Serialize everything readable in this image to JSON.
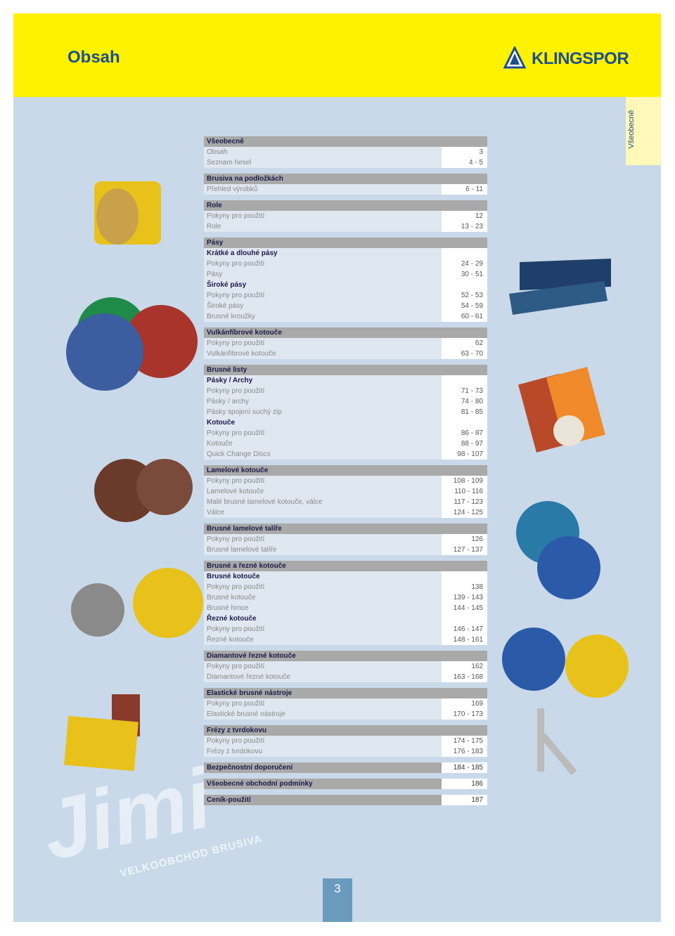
{
  "header": {
    "title": "Obsah",
    "brand": "KLINGSPOR"
  },
  "side_tab": "Všeobecně",
  "sections": [
    {
      "title": "Všeobecně",
      "items": [
        {
          "label": "Obsah",
          "pages": "3"
        },
        {
          "label": "Seznam hesel",
          "pages": "4 - 5"
        }
      ]
    },
    {
      "title": "Brusiva na podložkách",
      "items": [
        {
          "label": "Přehled výrobků",
          "pages": "6 - 11"
        }
      ]
    },
    {
      "title": "Role",
      "items": [
        {
          "label": "Pokyny pro použití",
          "pages": "12"
        },
        {
          "label": "Role",
          "pages": "13 - 23"
        }
      ]
    },
    {
      "title": "Pásy",
      "items": [
        {
          "heading": "Krátké a dlouhé pásy"
        },
        {
          "label": "Pokyny pro použití",
          "pages": "24 - 29"
        },
        {
          "label": "Pásy",
          "pages": "30 - 51"
        },
        {
          "heading": "Široké pásy"
        },
        {
          "label": "Pokyny pro použití",
          "pages": "52 - 53"
        },
        {
          "label": "Široké pásy",
          "pages": "54 - 59"
        },
        {
          "label": "Brusné kroužky",
          "pages": "60 - 61"
        }
      ]
    },
    {
      "title": "Vulkánfíbrové kotouče",
      "items": [
        {
          "label": "Pokyny pro použití",
          "pages": "62"
        },
        {
          "label": "Vulkánfíbrové kotouče",
          "pages": "63 - 70"
        }
      ]
    },
    {
      "title": "Brusné listy",
      "items": [
        {
          "heading": "Pásky / Archy"
        },
        {
          "label": "Pokyny pro použití",
          "pages": "71 - 73"
        },
        {
          "label": "Pásky / archy",
          "pages": "74 - 80"
        },
        {
          "label": "Pásky spojení suchý zip",
          "pages": "81 - 85"
        },
        {
          "heading": "Kotouče"
        },
        {
          "label": "Pokyny pro použití",
          "pages": "86 - 87"
        },
        {
          "label": "Kotouče",
          "pages": "88 - 97"
        },
        {
          "label": "Quick Change Discs",
          "pages": "98 - 107"
        }
      ]
    },
    {
      "title": "Lamelové kotouče",
      "items": [
        {
          "label": "Pokyny pro použití",
          "pages": "108 - 109"
        },
        {
          "label": "Lamelové kotouče",
          "pages": "110 - 116"
        },
        {
          "label": "Malé brusné lamelové kotouče, válce",
          "pages": "117 - 123"
        },
        {
          "label": "Válce",
          "pages": "124 - 125"
        }
      ]
    },
    {
      "title": "Brusné lamelové talíře",
      "items": [
        {
          "label": "Pokyny pro použití",
          "pages": "126"
        },
        {
          "label": "Brusné lamelové talíře",
          "pages": "127 - 137"
        }
      ]
    },
    {
      "title": "Brusné a řezné kotouče",
      "items": [
        {
          "heading": "Brusné kotouče"
        },
        {
          "label": "Pokyny pro použití",
          "pages": "138"
        },
        {
          "label": "Brusné kotouče",
          "pages": "139 - 143"
        },
        {
          "label": "Brusné hrnce",
          "pages": "144 - 145"
        },
        {
          "heading": "Řezné kotouče"
        },
        {
          "label": "Pokyny pro použití",
          "pages": "146 - 147"
        },
        {
          "label": "Řezné kotouče",
          "pages": "148 - 161"
        }
      ]
    },
    {
      "title": "Diamantové řezné kotouče",
      "items": [
        {
          "label": "Pokyny pro použití",
          "pages": "162"
        },
        {
          "label": "Diamantové řezné kotouče",
          "pages": "163 - 168"
        }
      ]
    },
    {
      "title": "Elastické brusné nástroje",
      "items": [
        {
          "label": "Pokyny pro použití",
          "pages": "169"
        },
        {
          "label": "Elastické brusné nástroje",
          "pages": "170 - 173"
        }
      ]
    },
    {
      "title": "Frézy z tvrdokovu",
      "items": [
        {
          "label": "Pokyny pro použití",
          "pages": "174 - 175"
        },
        {
          "label": "Frézy z tvrdokovu",
          "pages": "176 - 183"
        }
      ]
    },
    {
      "title": "Bezpečnostní doporučení",
      "pages": "184 - 185",
      "items": []
    },
    {
      "title": "Všeobecné obchodní podmínky",
      "pages": "186",
      "items": []
    },
    {
      "title": "Ceník-použití",
      "pages": "187",
      "items": []
    }
  ],
  "watermark": {
    "logo": "Jimi",
    "tagline": "VELKOOBCHOD BRUSIVA"
  },
  "page_number": "3"
}
